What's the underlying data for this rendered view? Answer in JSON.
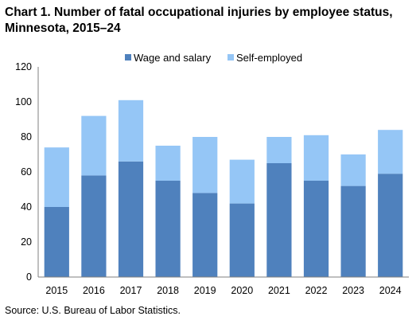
{
  "page": {
    "title": "Chart 1. Number of fatal occupational injuries by employee status, Minnesota, 2015–24",
    "source": "Source: U.S. Bureau  of Labor Statistics."
  },
  "colors": {
    "wage_and_salary": "#4f81bd",
    "self_employed": "#95c6f6",
    "axis": "#7f7f7f"
  },
  "chart_data": {
    "type": "bar",
    "stacked": true,
    "categories": [
      "2015",
      "2016",
      "2017",
      "2018",
      "2019",
      "2020",
      "2021",
      "2022",
      "2023",
      "2024"
    ],
    "series": [
      {
        "name": "Wage and salary",
        "values": [
          40,
          58,
          66,
          55,
          48,
          42,
          65,
          55,
          52,
          59
        ]
      },
      {
        "name": "Self-employed",
        "values": [
          34,
          34,
          35,
          20,
          32,
          25,
          15,
          26,
          18,
          25
        ]
      }
    ],
    "ylim": [
      0,
      120
    ],
    "yticks": [
      0,
      20,
      40,
      60,
      80,
      100,
      120
    ],
    "grid": false,
    "legend": "top-center",
    "xlabel": "",
    "ylabel": ""
  }
}
